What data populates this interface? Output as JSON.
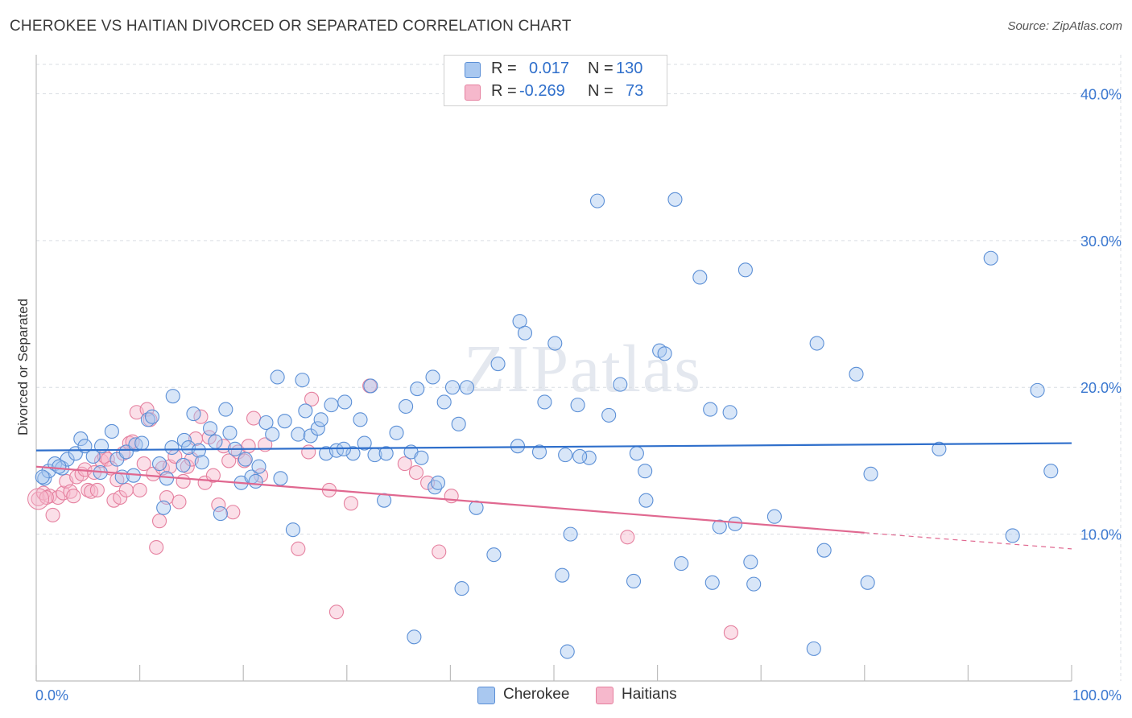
{
  "title": "CHEROKEE VS HAITIAN DIVORCED OR SEPARATED CORRELATION CHART",
  "source": "Source: ZipAtlas.com",
  "watermark": "ZIPatlas",
  "legend": {
    "rows": [
      {
        "r_label": "R =",
        "r_value": "0.017",
        "n_label": "N =",
        "n_value": "130",
        "color": "#a9c8f0",
        "border": "#5b8fd6"
      },
      {
        "r_label": "R =",
        "r_value": "-0.269",
        "n_label": "N =",
        "n_value": "73",
        "color": "#f6b8cc",
        "border": "#e5809f"
      }
    ]
  },
  "bottom_legend": [
    {
      "label": "Cherokee",
      "color": "#a9c8f0",
      "border": "#5b8fd6"
    },
    {
      "label": "Haitians",
      "color": "#f6b8cc",
      "border": "#e5809f"
    }
  ],
  "chart_data": {
    "type": "scatter",
    "title": "CHEROKEE VS HAITIAN DIVORCED OR SEPARATED CORRELATION CHART",
    "xlabel": "",
    "ylabel": "Divorced or Separated",
    "xlim": [
      0,
      100
    ],
    "ylim": [
      0,
      42
    ],
    "x_tick_labels": [
      "0.0%",
      "100.0%"
    ],
    "y_ticks": [
      10,
      20,
      30,
      40
    ],
    "y_tick_labels": [
      "10.0%",
      "20.0%",
      "30.0%",
      "40.0%"
    ],
    "grid": true,
    "legend_position": "top-center",
    "series": [
      {
        "name": "Cherokee",
        "color": "#5b8fd6",
        "fill": "#a9c8f0",
        "trend": {
          "x": [
            0,
            100
          ],
          "y": [
            15.7,
            16.2
          ],
          "color": "#2f6fcb"
        },
        "points": [
          [
            0.8,
            13.8
          ],
          [
            1.2,
            14.3
          ],
          [
            1.8,
            14.8
          ],
          [
            2.5,
            14.5
          ],
          [
            3.0,
            15.1
          ],
          [
            3.8,
            15.5
          ],
          [
            4.3,
            16.5
          ],
          [
            4.7,
            16.0
          ],
          [
            5.5,
            15.3
          ],
          [
            6.2,
            14.2
          ],
          [
            6.3,
            16.0
          ],
          [
            7.3,
            17.0
          ],
          [
            7.8,
            15.1
          ],
          [
            8.3,
            13.9
          ],
          [
            8.7,
            15.6
          ],
          [
            9.6,
            16.1
          ],
          [
            10.2,
            16.2
          ],
          [
            10.8,
            17.8
          ],
          [
            11.2,
            18.0
          ],
          [
            11.9,
            14.8
          ],
          [
            12.3,
            11.8
          ],
          [
            12.6,
            13.8
          ],
          [
            13.1,
            15.9
          ],
          [
            13.2,
            19.4
          ],
          [
            14.3,
            16.4
          ],
          [
            14.7,
            15.9
          ],
          [
            15.2,
            18.2
          ],
          [
            15.7,
            15.7
          ],
          [
            16.0,
            14.9
          ],
          [
            16.8,
            17.2
          ],
          [
            17.3,
            16.3
          ],
          [
            17.8,
            11.4
          ],
          [
            18.3,
            18.5
          ],
          [
            18.7,
            16.9
          ],
          [
            19.2,
            15.8
          ],
          [
            19.8,
            13.5
          ],
          [
            20.2,
            15.1
          ],
          [
            20.8,
            13.9
          ],
          [
            21.2,
            13.6
          ],
          [
            21.5,
            14.6
          ],
          [
            22.2,
            17.6
          ],
          [
            22.8,
            16.8
          ],
          [
            23.3,
            20.7
          ],
          [
            23.6,
            13.8
          ],
          [
            24.0,
            17.7
          ],
          [
            24.8,
            10.3
          ],
          [
            25.3,
            16.8
          ],
          [
            25.7,
            20.5
          ],
          [
            26.0,
            18.4
          ],
          [
            26.5,
            16.7
          ],
          [
            27.2,
            17.2
          ],
          [
            27.5,
            17.8
          ],
          [
            28.0,
            15.5
          ],
          [
            28.5,
            18.8
          ],
          [
            29.0,
            15.7
          ],
          [
            29.8,
            19.0
          ],
          [
            30.6,
            15.5
          ],
          [
            31.3,
            17.8
          ],
          [
            31.7,
            16.2
          ],
          [
            32.3,
            20.1
          ],
          [
            32.7,
            15.4
          ],
          [
            33.8,
            15.5
          ],
          [
            33.6,
            12.3
          ],
          [
            34.8,
            16.9
          ],
          [
            35.7,
            18.7
          ],
          [
            36.2,
            15.6
          ],
          [
            36.5,
            3.0
          ],
          [
            36.8,
            19.9
          ],
          [
            37.2,
            15.2
          ],
          [
            38.3,
            20.7
          ],
          [
            38.5,
            13.2
          ],
          [
            38.8,
            13.5
          ],
          [
            39.4,
            19.0
          ],
          [
            40.2,
            20.0
          ],
          [
            40.8,
            17.5
          ],
          [
            41.1,
            6.3
          ],
          [
            41.6,
            20.0
          ],
          [
            42.5,
            11.8
          ],
          [
            44.2,
            8.6
          ],
          [
            44.6,
            21.6
          ],
          [
            46.5,
            16.0
          ],
          [
            46.7,
            24.5
          ],
          [
            47.2,
            23.7
          ],
          [
            48.6,
            15.6
          ],
          [
            49.1,
            19.0
          ],
          [
            50.1,
            23.0
          ],
          [
            50.8,
            7.2
          ],
          [
            51.1,
            15.4
          ],
          [
            51.3,
            2.0
          ],
          [
            51.6,
            10.0
          ],
          [
            52.3,
            18.8
          ],
          [
            53.4,
            15.2
          ],
          [
            54.2,
            32.7
          ],
          [
            55.3,
            18.1
          ],
          [
            56.4,
            20.2
          ],
          [
            57.7,
            6.8
          ],
          [
            58.0,
            15.5
          ],
          [
            58.8,
            14.3
          ],
          [
            58.9,
            12.3
          ],
          [
            60.2,
            22.5
          ],
          [
            60.7,
            22.3
          ],
          [
            61.7,
            32.8
          ],
          [
            62.3,
            8.0
          ],
          [
            64.1,
            27.5
          ],
          [
            65.1,
            18.5
          ],
          [
            65.3,
            6.7
          ],
          [
            66.0,
            10.5
          ],
          [
            67.0,
            18.3
          ],
          [
            67.5,
            10.7
          ],
          [
            68.5,
            28.0
          ],
          [
            69.0,
            8.1
          ],
          [
            69.3,
            6.6
          ],
          [
            71.3,
            11.2
          ],
          [
            75.1,
            2.2
          ],
          [
            75.4,
            23.0
          ],
          [
            76.1,
            8.9
          ],
          [
            79.2,
            20.9
          ],
          [
            80.3,
            6.7
          ],
          [
            80.6,
            14.1
          ],
          [
            87.2,
            15.8
          ],
          [
            92.2,
            28.8
          ],
          [
            94.3,
            9.9
          ],
          [
            96.7,
            19.8
          ],
          [
            98.0,
            14.3
          ],
          [
            0.6,
            13.9
          ],
          [
            2.2,
            14.6
          ],
          [
            9.4,
            14.0
          ],
          [
            14.2,
            14.7
          ],
          [
            29.7,
            15.8
          ],
          [
            52.5,
            15.3
          ]
        ]
      },
      {
        "name": "Haitians",
        "color": "#e5809f",
        "fill": "#f6b8cc",
        "trend": {
          "x": [
            0,
            80
          ],
          "y": [
            14.6,
            10.1
          ],
          "dashed_to": [
            100,
            9.0
          ],
          "color": "#e06890"
        },
        "points": [
          [
            0.2,
            12.4
          ],
          [
            0.7,
            12.8
          ],
          [
            1.3,
            12.6
          ],
          [
            1.6,
            11.3
          ],
          [
            2.1,
            12.5
          ],
          [
            2.6,
            12.8
          ],
          [
            2.9,
            13.6
          ],
          [
            3.3,
            12.9
          ],
          [
            3.6,
            12.6
          ],
          [
            3.9,
            13.9
          ],
          [
            4.4,
            14.1
          ],
          [
            4.7,
            14.4
          ],
          [
            5.0,
            13.0
          ],
          [
            5.3,
            12.9
          ],
          [
            5.6,
            14.2
          ],
          [
            5.9,
            13.0
          ],
          [
            6.3,
            15.0
          ],
          [
            6.6,
            15.3
          ],
          [
            6.9,
            15.1
          ],
          [
            7.2,
            14.5
          ],
          [
            7.5,
            12.3
          ],
          [
            7.8,
            13.7
          ],
          [
            8.1,
            12.5
          ],
          [
            8.4,
            15.5
          ],
          [
            8.7,
            13.0
          ],
          [
            9.0,
            16.2
          ],
          [
            9.3,
            16.3
          ],
          [
            9.7,
            18.3
          ],
          [
            10.0,
            13.0
          ],
          [
            10.4,
            14.8
          ],
          [
            10.7,
            18.5
          ],
          [
            11.0,
            17.8
          ],
          [
            11.3,
            14.1
          ],
          [
            11.6,
            9.1
          ],
          [
            11.9,
            10.9
          ],
          [
            12.2,
            14.5
          ],
          [
            12.6,
            12.5
          ],
          [
            12.9,
            14.6
          ],
          [
            13.4,
            15.3
          ],
          [
            13.8,
            12.2
          ],
          [
            14.2,
            13.6
          ],
          [
            14.6,
            14.6
          ],
          [
            15.0,
            15.1
          ],
          [
            15.4,
            16.5
          ],
          [
            15.9,
            18.0
          ],
          [
            16.3,
            13.5
          ],
          [
            16.7,
            16.6
          ],
          [
            17.1,
            14.0
          ],
          [
            17.6,
            12.0
          ],
          [
            18.1,
            16.0
          ],
          [
            18.6,
            15.0
          ],
          [
            19.0,
            11.5
          ],
          [
            19.5,
            15.6
          ],
          [
            20.1,
            15.0
          ],
          [
            20.5,
            16.0
          ],
          [
            21.0,
            17.9
          ],
          [
            21.7,
            14.0
          ],
          [
            22.1,
            16.1
          ],
          [
            25.3,
            9.0
          ],
          [
            26.3,
            15.6
          ],
          [
            26.6,
            19.2
          ],
          [
            28.3,
            13.0
          ],
          [
            29.0,
            4.7
          ],
          [
            30.4,
            12.1
          ],
          [
            32.2,
            20.1
          ],
          [
            35.6,
            14.8
          ],
          [
            36.7,
            14.2
          ],
          [
            37.8,
            13.5
          ],
          [
            38.9,
            8.8
          ],
          [
            40.1,
            12.6
          ],
          [
            57.1,
            9.8
          ],
          [
            67.1,
            3.3
          ],
          [
            1.0,
            12.5
          ]
        ]
      }
    ]
  }
}
